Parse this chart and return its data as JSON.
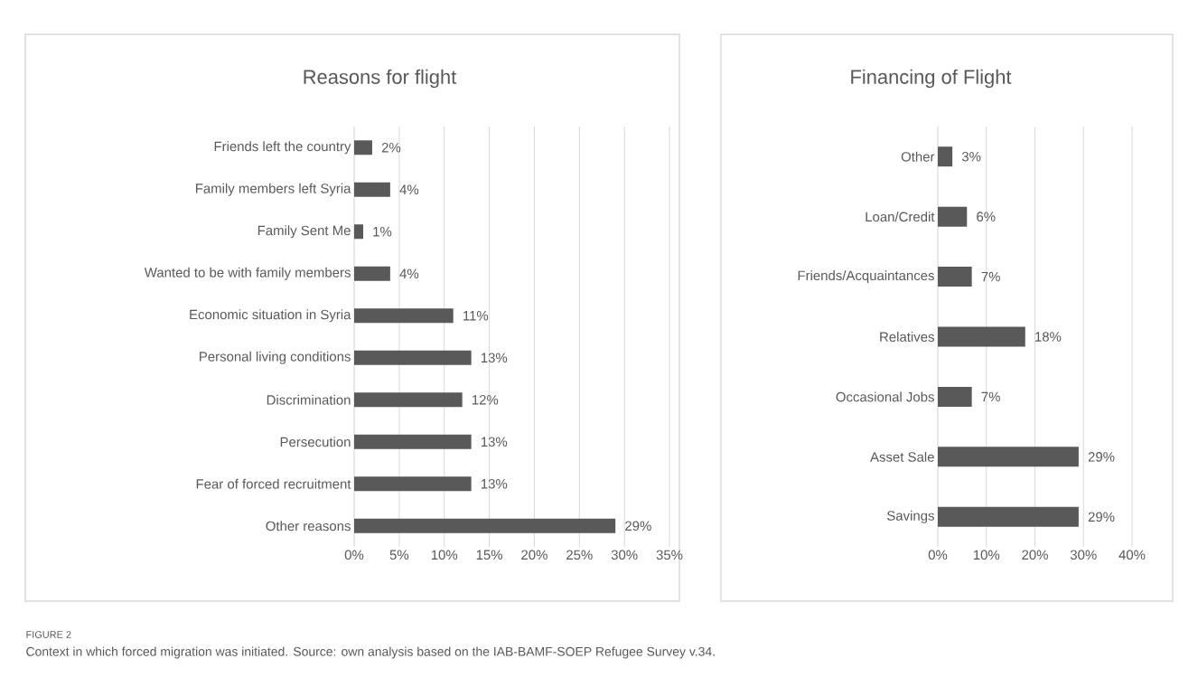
{
  "chart_data": [
    {
      "type": "bar",
      "orientation": "horizontal",
      "title": "Reasons for flight",
      "categories": [
        "Friends left the country",
        "Family members left Syria",
        "Family Sent Me",
        "Wanted to be with family members",
        "Economic situation in Syria",
        "Personal living conditions",
        "Discrimination",
        "Persecution",
        "Fear of forced recruitment",
        "Other reasons"
      ],
      "values": [
        2,
        4,
        1,
        4,
        11,
        13,
        12,
        13,
        13,
        29
      ],
      "value_labels": [
        "2%",
        "4%",
        "1%",
        "4%",
        "11%",
        "13%",
        "12%",
        "13%",
        "13%",
        "29%"
      ],
      "color": "#595959",
      "xlim": [
        0,
        35
      ],
      "xticks": [
        {
          "value": 0,
          "label": "0%"
        },
        {
          "value": 5,
          "label": "5%"
        },
        {
          "value": 10,
          "label": "10%"
        },
        {
          "value": 15,
          "label": "15%"
        },
        {
          "value": 20,
          "label": "20%"
        },
        {
          "value": 25,
          "label": "25%"
        },
        {
          "value": 30,
          "label": "30%"
        },
        {
          "value": 35,
          "label": "35%"
        }
      ],
      "grid": "x",
      "annotations": [
        "FIGURE 2",
        "Context in which forced migration was initiated. Source: own analysis based on the IAB-BAMF-SOEP Refugee Survey v.34."
      ]
    },
    {
      "type": "bar",
      "orientation": "horizontal",
      "title": "Financing of Flight",
      "categories": [
        "Other",
        "Loan/Credit",
        "Friends/Acquaintances",
        "Relatives",
        "Occasional Jobs",
        "Asset Sale",
        "Savings"
      ],
      "values": [
        3,
        6,
        7,
        18,
        7,
        29,
        29
      ],
      "value_labels": [
        "3%",
        "6%",
        "7%",
        "18%",
        "7%",
        "29%",
        "29%"
      ],
      "color": "#595959",
      "xlim": [
        0,
        40
      ],
      "xticks": [
        {
          "value": 0,
          "label": "0%"
        },
        {
          "value": 10,
          "label": "10%"
        },
        {
          "value": 20,
          "label": "20%"
        },
        {
          "value": 30,
          "label": "30%"
        },
        {
          "value": 40,
          "label": "40%"
        }
      ],
      "grid": "x"
    }
  ]
}
